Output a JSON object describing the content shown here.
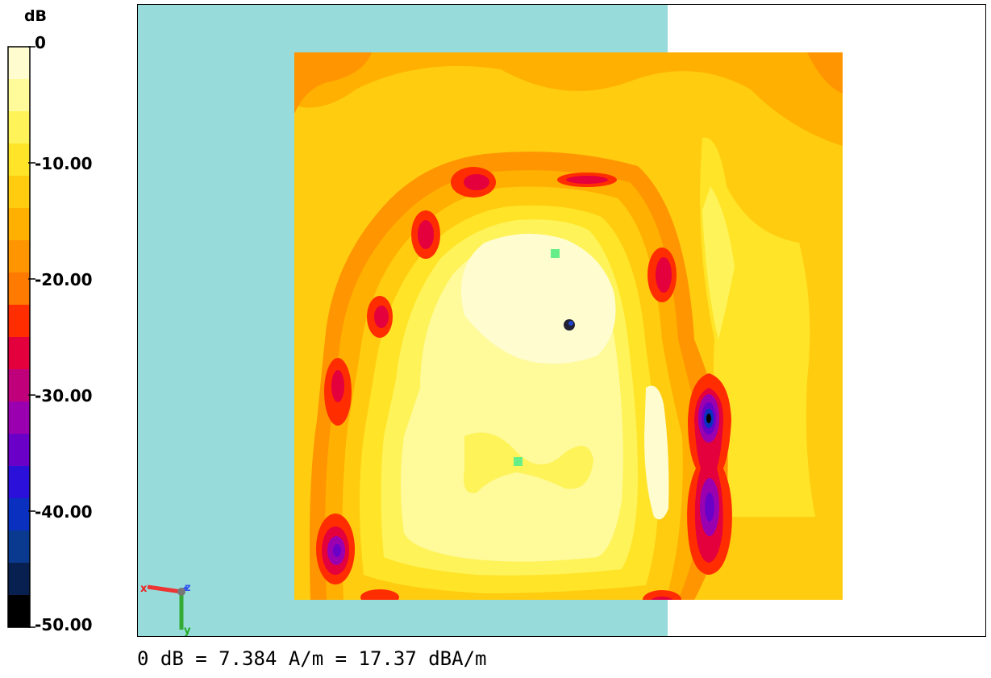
{
  "chart_data": {
    "type": "heatmap",
    "title": "",
    "colorbar": {
      "unit": "dB",
      "range": [
        -50,
        0
      ],
      "tick_values": [
        0,
        -10,
        -20,
        -30,
        -40,
        -50
      ],
      "tick_labels": [
        "0",
        "-10.00",
        "-20.00",
        "-30.00",
        "-40.00",
        "-50.00"
      ],
      "colors": [
        "#fffccf",
        "#fffa9a",
        "#fff35a",
        "#ffe428",
        "#ffcc10",
        "#ffb000",
        "#ff9500",
        "#ff7a00",
        "#ff2d00",
        "#e3003c",
        "#c0007a",
        "#9a00b0",
        "#6a00c8",
        "#2a10d8",
        "#0a30c0",
        "#0a3a90",
        "#082050",
        "#000000"
      ]
    },
    "annotation": "0 dB = 7.384 A/m = 17.37 dBA/m",
    "axes_triad": {
      "x": "x",
      "y": "y",
      "z": "z"
    },
    "grid": false,
    "legend_position": "left"
  },
  "colors": {
    "background_region": "#97dbdb",
    "field_high": "#fffccf",
    "field_low": "#000000",
    "marker_green": "#66ee88",
    "marker_dark": "#222233"
  }
}
